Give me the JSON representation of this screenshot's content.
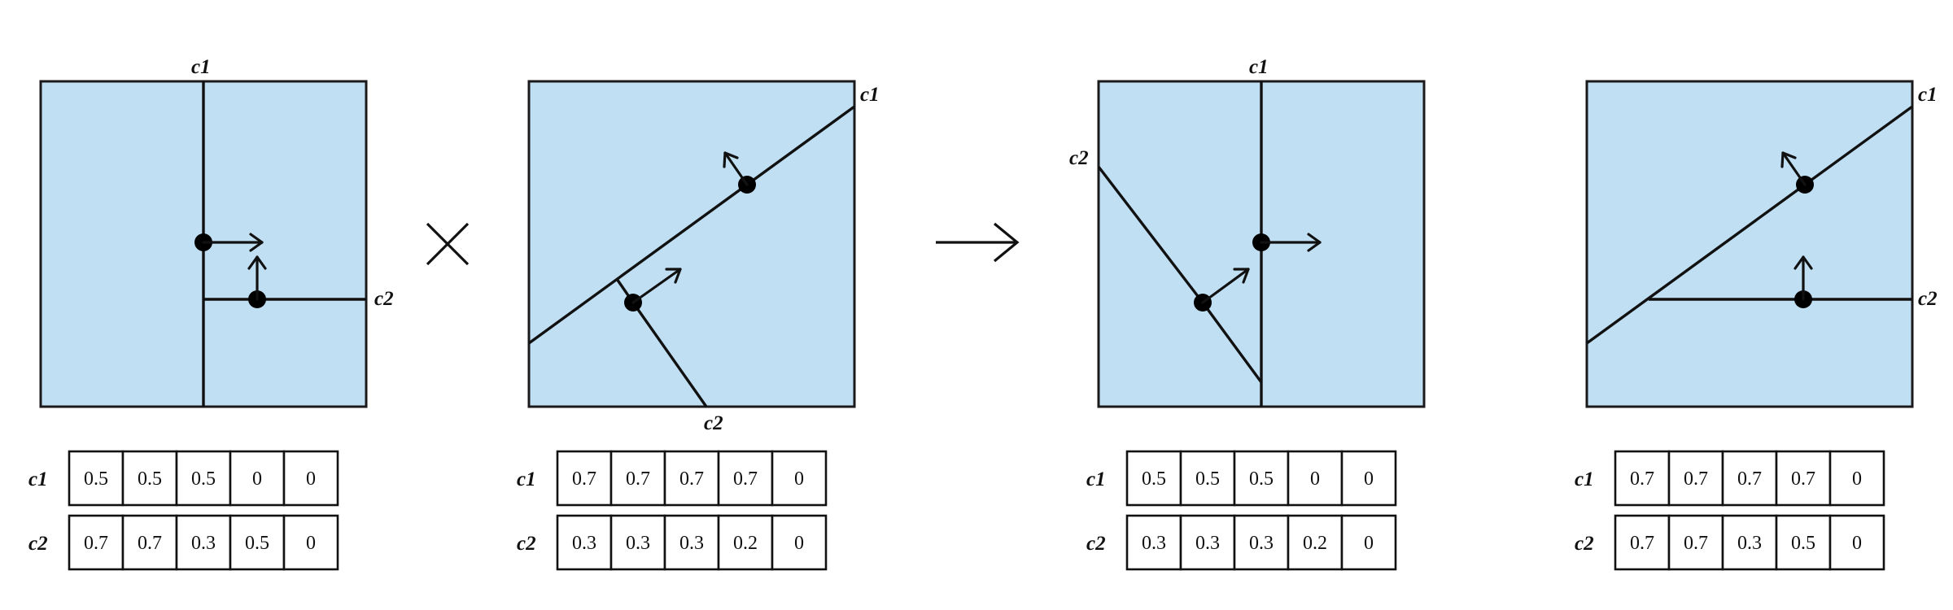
{
  "panels": [
    {
      "curve_labels": [
        "c1",
        "c2"
      ],
      "table": {
        "rows": [
          {
            "label": "c1",
            "values": [
              "0.5",
              "0.5",
              "0.5",
              "0",
              "0"
            ]
          },
          {
            "label": "c2",
            "values": [
              "0.7",
              "0.7",
              "0.3",
              "0.5",
              "0"
            ]
          }
        ]
      }
    },
    {
      "curve_labels": [
        "c1",
        "c2"
      ],
      "table": {
        "rows": [
          {
            "label": "c1",
            "values": [
              "0.7",
              "0.7",
              "0.7",
              "0.7",
              "0"
            ]
          },
          {
            "label": "c2",
            "values": [
              "0.3",
              "0.3",
              "0.3",
              "0.2",
              "0"
            ]
          }
        ]
      }
    },
    {
      "curve_labels": [
        "c1",
        "c2"
      ],
      "table": {
        "rows": [
          {
            "label": "c1",
            "values": [
              "0.5",
              "0.5",
              "0.5",
              "0",
              "0"
            ]
          },
          {
            "label": "c2",
            "values": [
              "0.3",
              "0.3",
              "0.3",
              "0.2",
              "0"
            ]
          }
        ]
      }
    },
    {
      "curve_labels": [
        "c1",
        "c2"
      ],
      "table": {
        "rows": [
          {
            "label": "c1",
            "values": [
              "0.7",
              "0.7",
              "0.7",
              "0.7",
              "0"
            ]
          },
          {
            "label": "c2",
            "values": [
              "0.7",
              "0.7",
              "0.3",
              "0.5",
              "0"
            ]
          }
        ]
      }
    }
  ],
  "operators": {
    "multiply_icon": "multiply-x-icon",
    "result_icon": "right-arrow-icon"
  },
  "colors": {
    "panel_fill": "#c0dff3",
    "stroke": "#111111"
  }
}
